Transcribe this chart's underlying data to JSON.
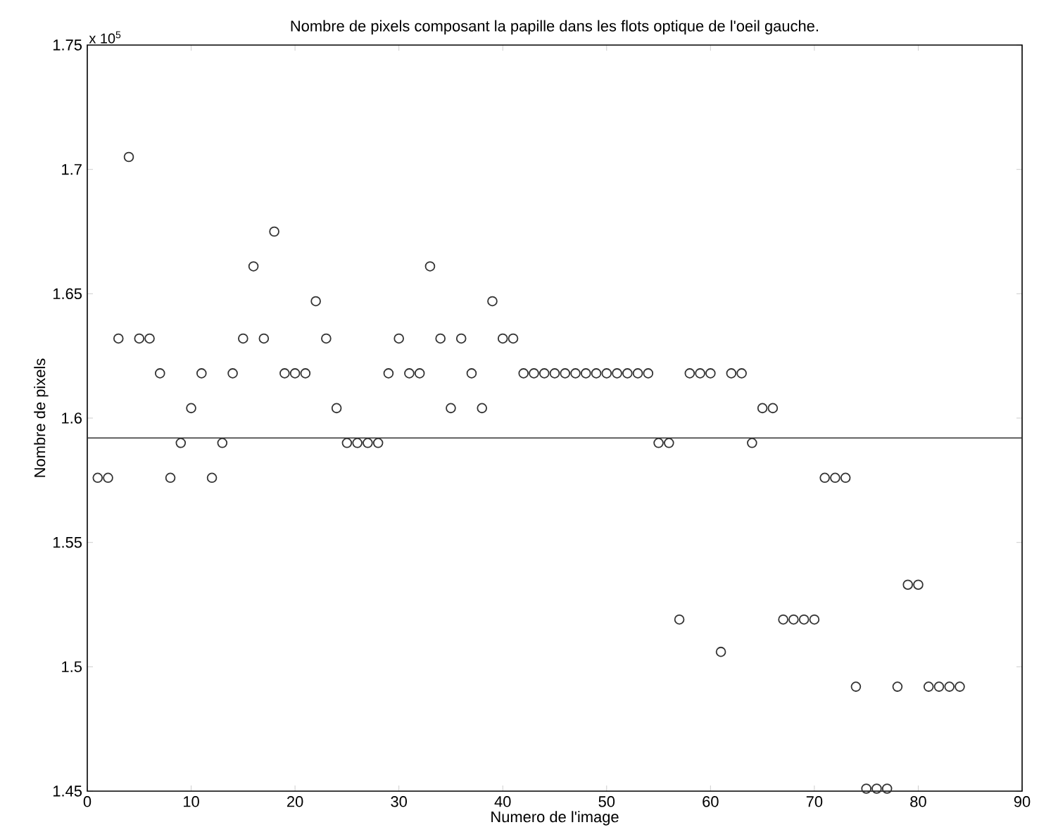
{
  "chart_data": {
    "type": "scatter",
    "title": "Nombre de pixels composant la papille dans les flots optique de l'oeil gauche.",
    "xlabel": "Numero de l'image",
    "ylabel": "Nombre de pixels",
    "annotations": [
      "x 10$^{5}$"
    ],
    "x": [
      1,
      2,
      3,
      4,
      5,
      6,
      7,
      8,
      9,
      10,
      11,
      12,
      13,
      14,
      15,
      16,
      17,
      18,
      19,
      20,
      21,
      22,
      23,
      24,
      25,
      26,
      27,
      28,
      29,
      30,
      31,
      32,
      33,
      34,
      35,
      36,
      37,
      38,
      39,
      40,
      41,
      42,
      43,
      44,
      45,
      46,
      47,
      48,
      49,
      50,
      51,
      52,
      53,
      54,
      55,
      56,
      57,
      58,
      59,
      60,
      61,
      62,
      63,
      64,
      65,
      66,
      67,
      68,
      69,
      70,
      71,
      72,
      73,
      74,
      75,
      76,
      77,
      78,
      79,
      80,
      81,
      82,
      83,
      84
    ],
    "series": [
      {
        "color": "#333333",
        "values": [
          1.576,
          1.576,
          1.632,
          1.705,
          1.632,
          1.632,
          1.618,
          1.576,
          1.59,
          1.604,
          1.618,
          1.576,
          1.59,
          1.618,
          1.632,
          1.661,
          1.632,
          1.675,
          1.618,
          1.618,
          1.618,
          1.647,
          1.632,
          1.604,
          1.59,
          1.59,
          1.59,
          1.59,
          1.618,
          1.632,
          1.618,
          1.618,
          1.661,
          1.632,
          1.604,
          1.632,
          1.618,
          1.604,
          1.647,
          1.632,
          1.632,
          1.618,
          1.618,
          1.618,
          1.618,
          1.618,
          1.618,
          1.618,
          1.618,
          1.618,
          1.618,
          1.618,
          1.618,
          1.618,
          1.59,
          1.59,
          1.519,
          1.618,
          1.618,
          1.618,
          1.506,
          1.618,
          1.618,
          1.59,
          1.604,
          1.604,
          1.519,
          1.519,
          1.519,
          1.519,
          1.576,
          1.576,
          1.576,
          1.492,
          1.451,
          1.451,
          1.451,
          1.492,
          1.533,
          1.533,
          1.492,
          1.492,
          1.492,
          1.492
        ]
      }
    ],
    "ref_lines": [
      {
        "axis": "y",
        "value": 1.592,
        "color": "#333333"
      }
    ],
    "marker": "circle",
    "grid": false,
    "xlim": [
      0,
      90
    ],
    "ylim": [
      1.45,
      1.75
    ],
    "xticks": [
      0,
      10,
      20,
      30,
      40,
      50,
      60,
      70,
      80,
      90
    ],
    "yticks": [
      1.45,
      1.5,
      1.55,
      1.6,
      1.65,
      1.7,
      1.75
    ]
  }
}
